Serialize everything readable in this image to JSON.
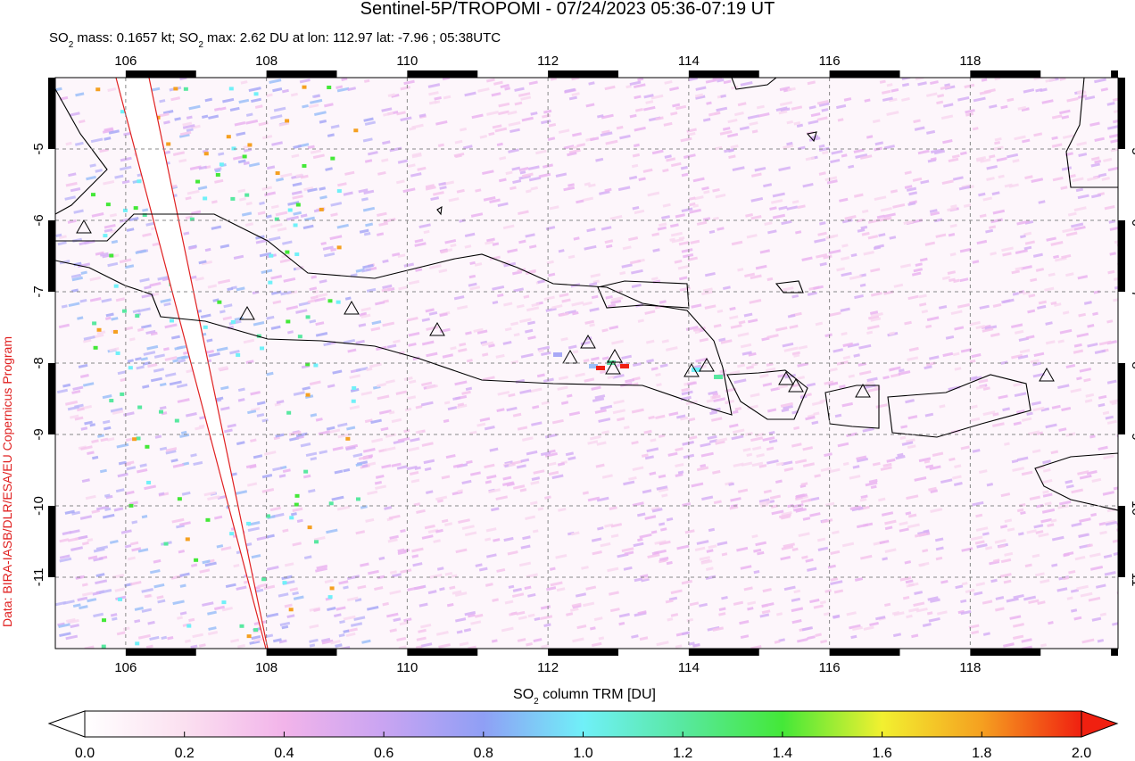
{
  "title": "Sentinel-5P/TROPOMI - 07/24/2023 05:36-07:19 UT",
  "subtitle_parts": [
    "SO",
    "2",
    " mass: 0.1657 kt; SO",
    "2",
    " max: 2.62 DU at lon: 112.97 lat: -7.96 ; 05:38UTC"
  ],
  "credit": "Data: BIRA-IASB/DLR/ESA/EU Copernicus Program",
  "map": {
    "xlim": [
      105,
      120.1
    ],
    "ylim": [
      -12,
      -4
    ],
    "xticks": [
      106,
      108,
      110,
      112,
      114,
      116,
      118
    ],
    "yticks": [
      -5,
      -6,
      -7,
      -8,
      -9,
      -10,
      -11
    ],
    "grid": true
  },
  "colorbar": {
    "label_parts": [
      "SO",
      "2",
      " column TRM [DU]"
    ],
    "lim": [
      0,
      2
    ],
    "ticks": [
      {
        "value": 0,
        "label": "0.0"
      },
      {
        "value": 0.2,
        "label": "0.2"
      },
      {
        "value": 0.4,
        "label": "0.4"
      },
      {
        "value": 0.6,
        "label": "0.6"
      },
      {
        "value": 0.8,
        "label": "0.8"
      },
      {
        "value": 1,
        "label": "1.0"
      },
      {
        "value": 1.2,
        "label": "1.2"
      },
      {
        "value": 1.4,
        "label": "1.4"
      },
      {
        "value": 1.6,
        "label": "1.6"
      },
      {
        "value": 1.8,
        "label": "1.8"
      },
      {
        "value": 2,
        "label": "2.0"
      }
    ]
  }
}
